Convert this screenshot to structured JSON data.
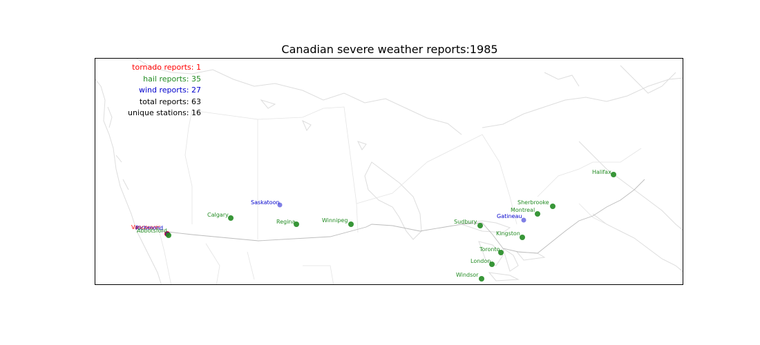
{
  "title": "Canadian severe weather reports:1985",
  "legend": {
    "tornado": "tornado reports: 1",
    "hail": "hail reports: 35",
    "wind": "wind reports: 27",
    "total": "total reports: 63",
    "stations": "unique stations: 16"
  },
  "colors": {
    "tornado": "#ff0000",
    "hail": "#228b22",
    "wind": "#0000cc",
    "text_dark": "#000000"
  },
  "stations": [
    {
      "name": "Vancouver",
      "type": "tornado"
    },
    {
      "name": "Richmond",
      "type": "wind"
    },
    {
      "name": "Abbotsford",
      "type": "hail"
    },
    {
      "name": "Calgary",
      "type": "hail"
    },
    {
      "name": "Saskatoon",
      "type": "wind"
    },
    {
      "name": "Regina",
      "type": "hail"
    },
    {
      "name": "Winnipeg",
      "type": "hail"
    },
    {
      "name": "Sudbury",
      "type": "hail"
    },
    {
      "name": "Gatineau",
      "type": "wind"
    },
    {
      "name": "Montreal",
      "type": "hail"
    },
    {
      "name": "Sherbrooke",
      "type": "hail"
    },
    {
      "name": "Kingston",
      "type": "hail"
    },
    {
      "name": "Toronto",
      "type": "hail"
    },
    {
      "name": "London",
      "type": "hail"
    },
    {
      "name": "Windsor",
      "type": "hail"
    },
    {
      "name": "Halifax",
      "type": "hail"
    }
  ]
}
